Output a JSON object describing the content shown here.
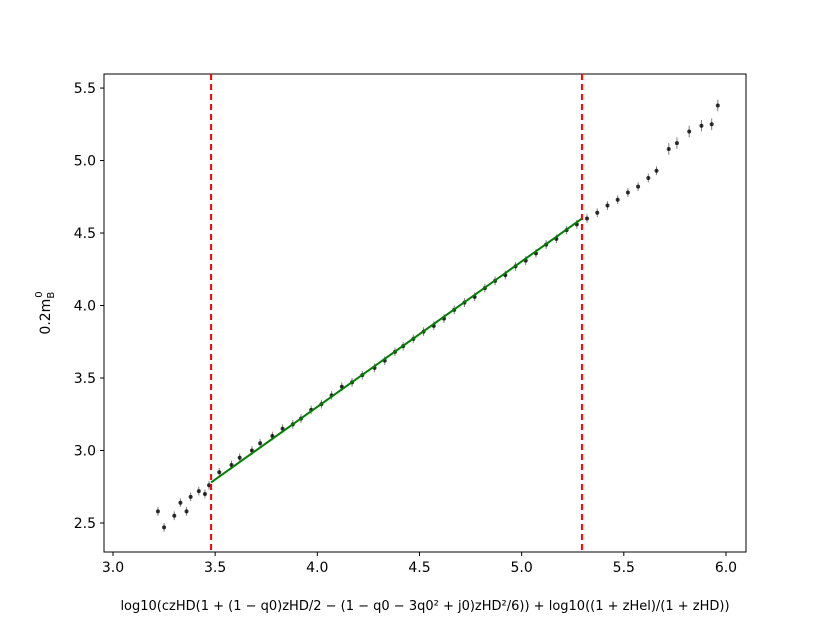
{
  "chart_data": {
    "type": "scatter",
    "xlabel": "log10(czHD(1 + (1 − q0)zHD/2 − (1 − q0 − 3q0² + j0)zHD²/6)) + log10((1 + zHel)/(1 + zHD))",
    "ylabel": {
      "main": "0.2m",
      "sub": "B",
      "sup": "0"
    },
    "xlim": [
      2.956,
      6.098
    ],
    "ylim": [
      2.3,
      5.597
    ],
    "xticks": [
      {
        "value": 3,
        "label": "3.0"
      },
      3.5,
      {
        "value": 4,
        "label": "4.0"
      },
      4.5,
      {
        "value": 5,
        "label": "5.0"
      },
      5.5,
      {
        "value": 6,
        "label": "6.0"
      }
    ],
    "yticks": [
      2.5,
      {
        "value": 3,
        "label": "3.0"
      },
      3.5,
      {
        "value": 4,
        "label": "4.0"
      },
      4.5,
      {
        "value": 5,
        "label": "5.0"
      },
      5.5
    ],
    "series": [
      {
        "color": "#000000",
        "x": [
          3.22,
          3.25,
          3.3,
          3.33,
          3.36,
          3.38,
          3.42,
          3.45,
          3.47,
          3.52,
          3.58,
          3.62,
          3.68,
          3.72,
          3.78,
          3.83,
          3.88,
          3.92,
          3.97,
          4.02,
          4.07,
          4.12,
          4.17,
          4.22,
          4.28,
          4.33,
          4.38,
          4.42,
          4.47,
          4.52,
          4.57,
          4.62,
          4.67,
          4.72,
          4.77,
          4.82,
          4.87,
          4.92,
          4.97,
          5.02,
          5.07,
          5.12,
          5.17,
          5.22,
          5.27,
          5.32,
          5.37,
          5.42,
          5.47,
          5.52,
          5.57,
          5.62,
          5.66,
          5.72,
          5.76,
          5.82,
          5.88,
          5.93,
          5.96
        ],
        "values": [
          2.58,
          2.47,
          2.55,
          2.64,
          2.58,
          2.68,
          2.72,
          2.7,
          2.76,
          2.85,
          2.9,
          2.95,
          3.0,
          3.05,
          3.1,
          3.15,
          3.18,
          3.22,
          3.28,
          3.32,
          3.38,
          3.44,
          3.47,
          3.52,
          3.57,
          3.62,
          3.68,
          3.72,
          3.77,
          3.82,
          3.86,
          3.91,
          3.97,
          4.02,
          4.06,
          4.12,
          4.17,
          4.21,
          4.27,
          4.31,
          4.36,
          4.42,
          4.46,
          4.52,
          4.56,
          4.6,
          4.64,
          4.69,
          4.73,
          4.78,
          4.82,
          4.88,
          4.93,
          5.08,
          5.12,
          5.2,
          5.24,
          5.25,
          5.38
        ],
        "yerr": [
          0.03,
          0.03,
          0.03,
          0.03,
          0.03,
          0.03,
          0.03,
          0.03,
          0.03,
          0.03,
          0.03,
          0.03,
          0.03,
          0.03,
          0.03,
          0.03,
          0.03,
          0.03,
          0.03,
          0.03,
          0.03,
          0.03,
          0.03,
          0.03,
          0.03,
          0.03,
          0.03,
          0.03,
          0.03,
          0.03,
          0.03,
          0.03,
          0.03,
          0.03,
          0.03,
          0.03,
          0.03,
          0.03,
          0.03,
          0.03,
          0.03,
          0.03,
          0.03,
          0.03,
          0.03,
          0.03,
          0.03,
          0.03,
          0.03,
          0.03,
          0.03,
          0.03,
          0.03,
          0.04,
          0.04,
          0.04,
          0.04,
          0.04,
          0.04
        ]
      }
    ],
    "fit": {
      "color": "#008000",
      "x": [
        3.48,
        5.295
      ],
      "values": [
        2.78,
        4.6
      ]
    },
    "vlines": [
      {
        "x": 3.48,
        "color": "#ff0000"
      },
      {
        "x": 5.295,
        "color": "#ff0000"
      }
    ]
  }
}
